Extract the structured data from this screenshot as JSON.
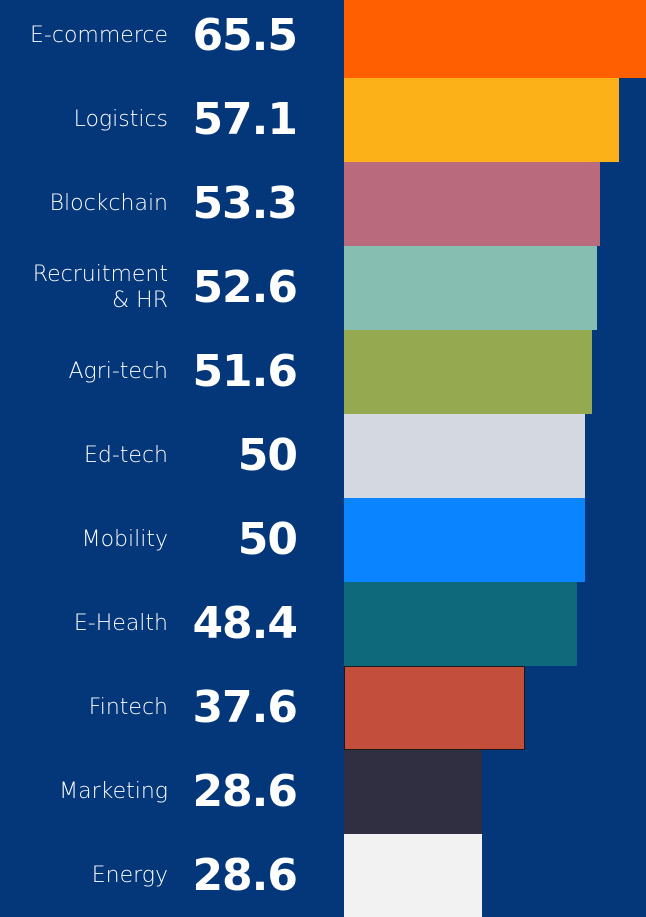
{
  "chart_data": {
    "type": "bar",
    "orientation": "horizontal",
    "categories": [
      "E-commerce",
      "Logistics",
      "Blockchain",
      "Recruitment\n& HR",
      "Agri-tech",
      "Ed-tech",
      "Mobility",
      "E-Health",
      "Fintech",
      "Marketing",
      "Energy"
    ],
    "values": [
      65.5,
      57.1,
      53.3,
      52.6,
      51.6,
      50,
      50,
      48.4,
      37.6,
      28.6,
      28.6
    ],
    "colors": [
      "#ff5f00",
      "#fdb119",
      "#b96a7d",
      "#86bfb2",
      "#95a950",
      "#d3d8e1",
      "#0a85ff",
      "#0e6a7a",
      "#c24e3b",
      "#302f42",
      "#f2f2f2"
    ]
  }
}
